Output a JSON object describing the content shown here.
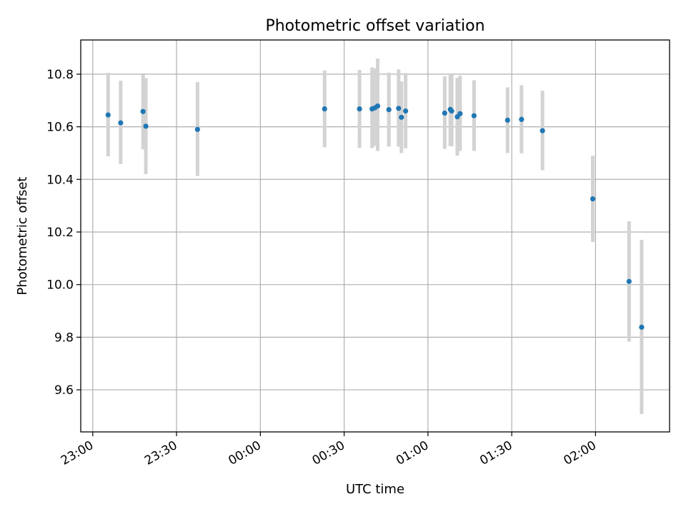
{
  "chart_data": {
    "type": "scatter",
    "title": "Photometric offset variation",
    "xlabel": "UTC time",
    "ylabel": "Photometric offset",
    "x_range_minutes_from_23_00": [
      -4.3,
      206.5
    ],
    "ylim": [
      9.44,
      10.93
    ],
    "grid": true,
    "x_ticks": [
      {
        "label": "23:00",
        "t": "23:00"
      },
      {
        "label": "23:30",
        "t": "23:30"
      },
      {
        "label": "00:00",
        "t": "00:00"
      },
      {
        "label": "00:30",
        "t": "00:30"
      },
      {
        "label": "01:00",
        "t": "01:00"
      },
      {
        "label": "01:30",
        "t": "01:30"
      },
      {
        "label": "02:00",
        "t": "02:00"
      }
    ],
    "y_ticks": [
      {
        "label": "9.6",
        "v": 9.6
      },
      {
        "label": "9.8",
        "v": 9.8
      },
      {
        "label": "10.0",
        "v": 10.0
      },
      {
        "label": "10.2",
        "v": 10.2
      },
      {
        "label": "10.4",
        "v": 10.4
      },
      {
        "label": "10.6",
        "v": 10.6
      },
      {
        "label": "10.8",
        "v": 10.8
      }
    ],
    "colors": {
      "point": "#1f77b4",
      "errorbar": "#d3d3d3",
      "grid": "#b0b0b0"
    },
    "points": [
      {
        "t": "23:05:30",
        "y": 10.645,
        "lo": 10.488,
        "hi": 10.805
      },
      {
        "t": "23:10:00",
        "y": 10.615,
        "lo": 10.458,
        "hi": 10.775
      },
      {
        "t": "23:18:00",
        "y": 10.658,
        "lo": 10.514,
        "hi": 10.798
      },
      {
        "t": "23:19:00",
        "y": 10.602,
        "lo": 10.42,
        "hi": 10.785
      },
      {
        "t": "23:37:30",
        "y": 10.59,
        "lo": 10.413,
        "hi": 10.77
      },
      {
        "t": "00:23:00",
        "y": 10.668,
        "lo": 10.522,
        "hi": 10.814
      },
      {
        "t": "00:35:30",
        "y": 10.668,
        "lo": 10.52,
        "hi": 10.816
      },
      {
        "t": "00:40:00",
        "y": 10.668,
        "lo": 10.519,
        "hi": 10.826
      },
      {
        "t": "00:41:00",
        "y": 10.672,
        "lo": 10.527,
        "hi": 10.822
      },
      {
        "t": "00:42:00",
        "y": 10.679,
        "lo": 10.508,
        "hi": 10.859
      },
      {
        "t": "00:46:00",
        "y": 10.665,
        "lo": 10.525,
        "hi": 10.806
      },
      {
        "t": "00:49:30",
        "y": 10.67,
        "lo": 10.525,
        "hi": 10.818
      },
      {
        "t": "00:50:30",
        "y": 10.636,
        "lo": 10.5,
        "hi": 10.773
      },
      {
        "t": "00:52:00",
        "y": 10.66,
        "lo": 10.518,
        "hi": 10.804
      },
      {
        "t": "01:06:00",
        "y": 10.652,
        "lo": 10.516,
        "hi": 10.792
      },
      {
        "t": "01:08:00",
        "y": 10.666,
        "lo": 10.527,
        "hi": 10.803
      },
      {
        "t": "01:08:30",
        "y": 10.66,
        "lo": 10.526,
        "hi": 10.798
      },
      {
        "t": "01:10:30",
        "y": 10.638,
        "lo": 10.49,
        "hi": 10.786
      },
      {
        "t": "01:11:30",
        "y": 10.65,
        "lo": 10.508,
        "hi": 10.794
      },
      {
        "t": "01:16:30",
        "y": 10.642,
        "lo": 10.508,
        "hi": 10.777
      },
      {
        "t": "01:28:30",
        "y": 10.625,
        "lo": 10.5,
        "hi": 10.75
      },
      {
        "t": "01:33:30",
        "y": 10.628,
        "lo": 10.499,
        "hi": 10.758
      },
      {
        "t": "01:41:00",
        "y": 10.585,
        "lo": 10.435,
        "hi": 10.737
      },
      {
        "t": "01:59:00",
        "y": 10.326,
        "lo": 10.162,
        "hi": 10.49
      },
      {
        "t": "02:12:00",
        "y": 10.012,
        "lo": 9.783,
        "hi": 10.241
      },
      {
        "t": "02:16:30",
        "y": 9.838,
        "lo": 9.508,
        "hi": 10.17
      }
    ]
  }
}
